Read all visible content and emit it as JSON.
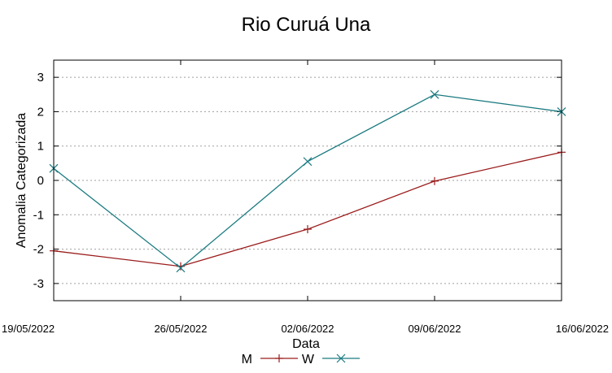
{
  "chart_data": {
    "type": "line",
    "title": "Rio Curuá Una",
    "xlabel": "Data",
    "ylabel": "Anomalia Categorizada",
    "categories": [
      "19/05/2022",
      "26/05/2022",
      "02/06/2022",
      "09/06/2022",
      "16/06/2022"
    ],
    "yticks": [
      "3",
      "2",
      "1",
      "0",
      "-1",
      "-2",
      "-3"
    ],
    "ylim": [
      -3.5,
      3.5
    ],
    "grid": "horizontal dotted",
    "legend_position": "bottom-center",
    "series": [
      {
        "name": "M",
        "color": "#9b1c1c",
        "marker": "plus",
        "values": [
          -2.05,
          -2.5,
          -1.42,
          -0.02,
          0.82
        ]
      },
      {
        "name": "W",
        "color": "#1a7a80",
        "marker": "cross",
        "values": [
          0.35,
          -2.55,
          0.55,
          2.5,
          2.0
        ]
      }
    ]
  }
}
